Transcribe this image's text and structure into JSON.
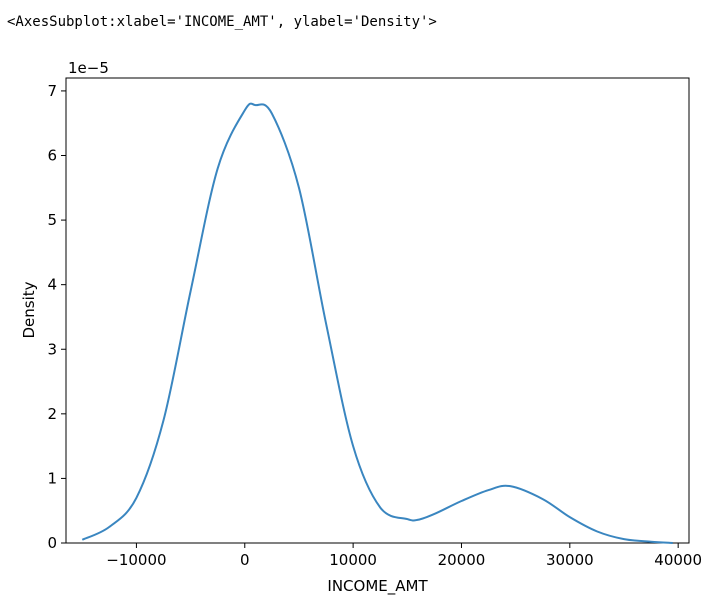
{
  "output_text": "<AxesSubplot:xlabel='INCOME_AMT', ylabel='Density'>",
  "chart_data": {
    "type": "line",
    "title": "",
    "xlabel": "INCOME_AMT",
    "ylabel": "Density",
    "y_offset_label": "1e−5",
    "xlim": [
      -16500,
      41000
    ],
    "ylim": [
      0,
      7.2
    ],
    "x_ticks": [
      -10000,
      0,
      10000,
      20000,
      30000,
      40000
    ],
    "x_tick_labels": [
      "−10000",
      "0",
      "10000",
      "20000",
      "30000",
      "40000"
    ],
    "y_ticks": [
      0,
      1,
      2,
      3,
      4,
      5,
      6,
      7
    ],
    "y_tick_labels": [
      "0",
      "1",
      "2",
      "3",
      "4",
      "5",
      "6",
      "7"
    ],
    "grid": false,
    "line_color": "#3a86c0",
    "series": [
      {
        "x": [
          -15000,
          -12500,
          -10000,
          -7500,
          -5000,
          -2500,
          0,
          1000,
          2500,
          5000,
          7500,
          10000,
          12500,
          15000,
          16000,
          17500,
          20000,
          22500,
          24500,
          27500,
          30000,
          32500,
          35000,
          37500,
          39500
        ],
        "y": [
          0.05,
          0.25,
          0.7,
          1.9,
          3.9,
          5.8,
          6.7,
          6.78,
          6.65,
          5.5,
          3.4,
          1.5,
          0.55,
          0.37,
          0.36,
          0.45,
          0.65,
          0.82,
          0.88,
          0.68,
          0.4,
          0.18,
          0.06,
          0.02,
          0.0
        ]
      }
    ]
  }
}
